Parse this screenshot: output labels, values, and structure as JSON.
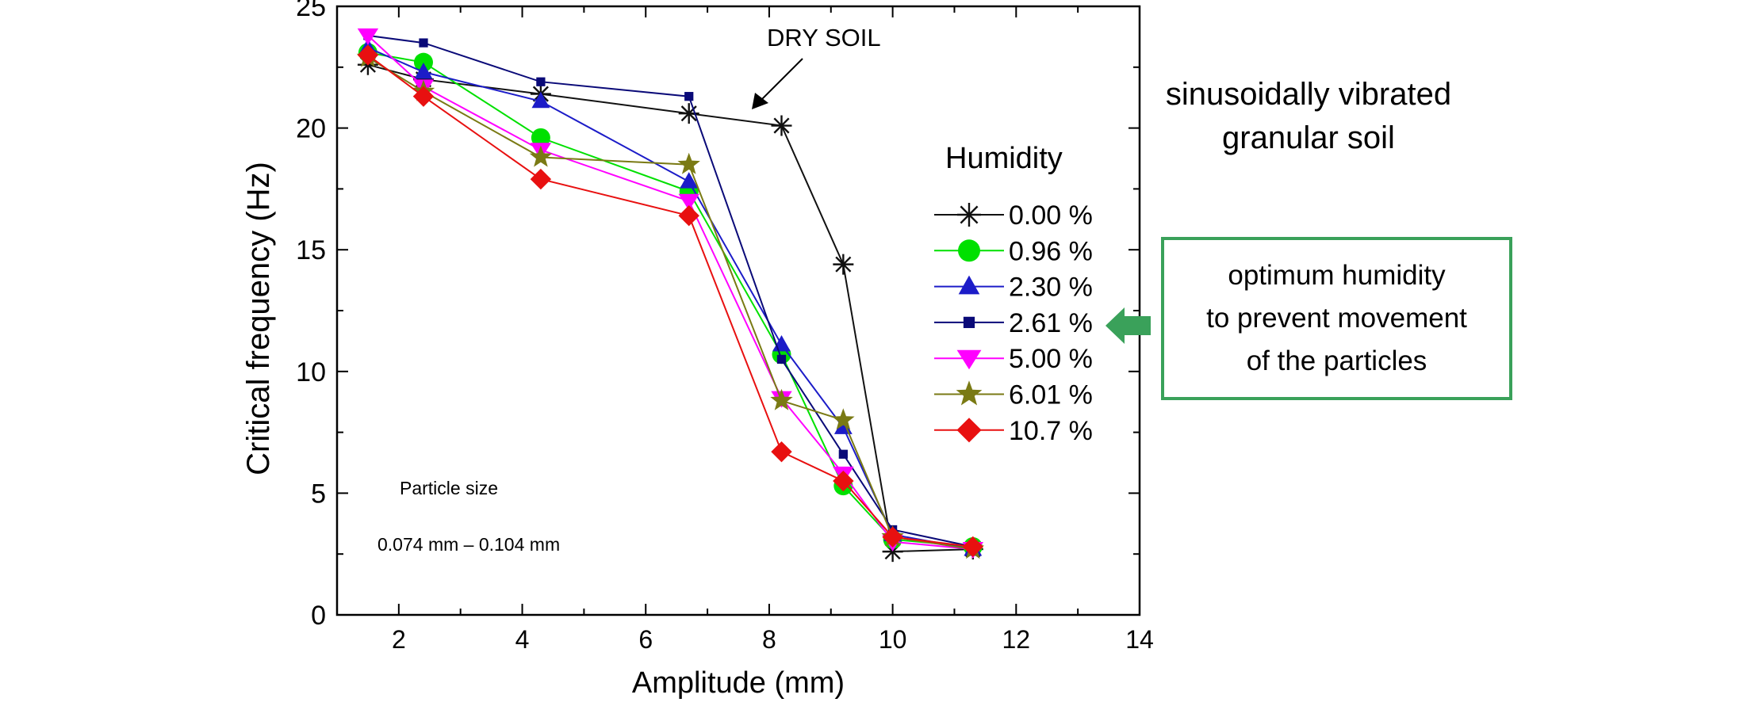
{
  "chart_data": {
    "type": "line",
    "xlabel": "Amplitude (mm)",
    "ylabel": "Critical frequency (Hz)",
    "xlim": [
      1,
      14
    ],
    "ylim": [
      0,
      25
    ],
    "x_ticks": [
      2,
      4,
      6,
      8,
      10,
      12,
      14
    ],
    "y_ticks": [
      0,
      5,
      10,
      15,
      20,
      25
    ],
    "legend_title": "Humidity",
    "legend_position": "right-inside",
    "grid": false,
    "series": [
      {
        "name": "0.00 %",
        "color": "#111111",
        "marker": "asterisk",
        "x": [
          1.5,
          2.4,
          4.3,
          6.7,
          8.2,
          9.2,
          10.0,
          11.3
        ],
        "y": [
          22.6,
          22.0,
          21.4,
          20.6,
          20.1,
          14.4,
          2.6,
          2.7
        ]
      },
      {
        "name": "0.96 %",
        "color": "#00e000",
        "marker": "circle",
        "x": [
          1.5,
          2.4,
          4.3,
          6.7,
          8.2,
          9.2,
          10.0,
          11.3
        ],
        "y": [
          23.1,
          22.7,
          19.6,
          17.4,
          10.7,
          5.3,
          3.1,
          2.8
        ]
      },
      {
        "name": "2.30 %",
        "color": "#1c1cc8",
        "marker": "triangle",
        "x": [
          1.5,
          2.4,
          4.3,
          6.7,
          8.2,
          9.2,
          10.0,
          11.3
        ],
        "y": [
          23.3,
          22.3,
          21.1,
          17.8,
          11.1,
          7.7,
          3.3,
          2.7
        ]
      },
      {
        "name": "2.61 %",
        "color": "#0a0a78",
        "marker": "square",
        "x": [
          1.5,
          2.4,
          4.3,
          6.7,
          8.2,
          9.2,
          10.0,
          11.3
        ],
        "y": [
          23.8,
          23.5,
          21.9,
          21.3,
          10.5,
          6.6,
          3.5,
          2.8
        ]
      },
      {
        "name": "5.00 %",
        "color": "#ff00ff",
        "marker": "triangle-down",
        "x": [
          1.5,
          2.4,
          4.3,
          6.7,
          8.2,
          9.2,
          10.0,
          11.3
        ],
        "y": [
          23.8,
          21.7,
          19.1,
          17.0,
          8.9,
          5.8,
          3.0,
          2.7
        ]
      },
      {
        "name": "6.01 %",
        "color": "#7a7a14",
        "marker": "star",
        "x": [
          1.5,
          2.4,
          4.3,
          6.7,
          8.2,
          9.2,
          10.0,
          11.3
        ],
        "y": [
          22.9,
          21.5,
          18.8,
          18.5,
          8.8,
          8.0,
          3.2,
          2.7
        ]
      },
      {
        "name": "10.7 %",
        "color": "#e81010",
        "marker": "diamond",
        "x": [
          1.5,
          2.4,
          4.3,
          6.7,
          8.2,
          9.2,
          10.0,
          11.3
        ],
        "y": [
          23.0,
          21.3,
          17.9,
          16.4,
          6.7,
          5.5,
          3.2,
          2.8
        ]
      }
    ],
    "annotations": {
      "dry_soil": "DRY SOIL",
      "particle_size_label": "Particle size",
      "particle_size_value": "0.074 mm – 0.104 mm"
    }
  },
  "side_title": [
    "sinusoidally vibrated",
    "granular soil"
  ],
  "callout": {
    "lines": [
      "optimum humidity",
      "to prevent movement",
      "of the particles"
    ],
    "color": "#3aa15a"
  }
}
